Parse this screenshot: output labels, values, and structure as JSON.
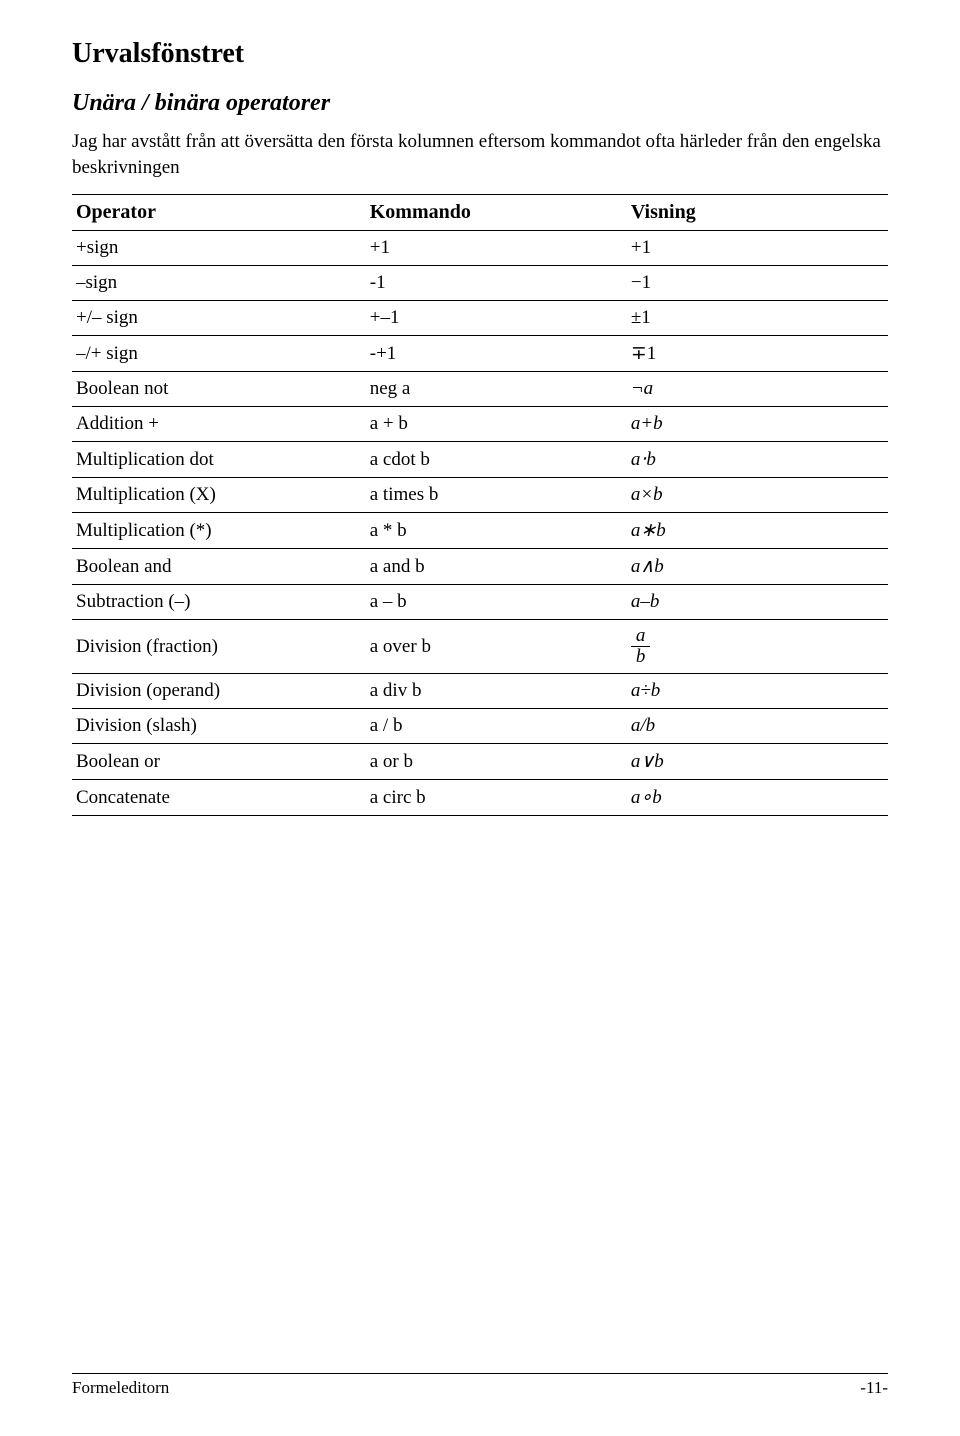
{
  "page": {
    "title": "Urvalsfönstret",
    "section": "Unära / binära operatorer",
    "intro": "Jag har avstått från att översätta den första kolumnen eftersom kommandot ofta härleder från den engelska beskrivningen",
    "footer_left": "Formeleditorn",
    "footer_right": "-11-"
  },
  "table": {
    "headers": {
      "op": "Operator",
      "cmd": "Kommando",
      "show": "Visning"
    },
    "rows": [
      {
        "op": "+sign",
        "cmd": "+1",
        "show": "+1",
        "italic": false
      },
      {
        "op": "–sign",
        "cmd": "-1",
        "show": "−1",
        "italic": false
      },
      {
        "op": "+/– sign",
        "cmd": "+–1",
        "show": "±1",
        "italic": false
      },
      {
        "op": "–/+ sign",
        "cmd": "-+1",
        "show": "∓1",
        "italic": false
      },
      {
        "op": "Boolean not",
        "cmd": "neg a",
        "show": "¬a",
        "italic": true
      },
      {
        "op": "Addition +",
        "cmd": "a + b",
        "show": "a+b",
        "italic": true
      },
      {
        "op": "Multiplication dot",
        "cmd": "a cdot b",
        "show": "a⋅b",
        "italic": true
      },
      {
        "op": "Multiplication (X)",
        "cmd": "a times b",
        "show": "a×b",
        "italic": true
      },
      {
        "op": "Multiplication (*)",
        "cmd": "a * b",
        "show": "a∗b",
        "italic": true
      },
      {
        "op": "Boolean and",
        "cmd": "a and b",
        "show": "a∧b",
        "italic": true
      },
      {
        "op": "Subtraction (–)",
        "cmd": "a – b",
        "show": "a–b",
        "italic": true
      },
      {
        "op": "Division (fraction)",
        "cmd": "a over b",
        "show_fraction": {
          "num": "a",
          "den": "b"
        }
      },
      {
        "op": "Division (operand)",
        "cmd": "a div b",
        "show": "a÷b",
        "italic": true
      },
      {
        "op": "Division (slash)",
        "cmd": "a / b",
        "show": "a/b",
        "italic": true
      },
      {
        "op": "Boolean or",
        "cmd": "a or b",
        "show": "a∨b",
        "italic": true
      },
      {
        "op": "Concatenate",
        "cmd": "a circ b",
        "show": "a∘b",
        "italic": true
      }
    ]
  }
}
